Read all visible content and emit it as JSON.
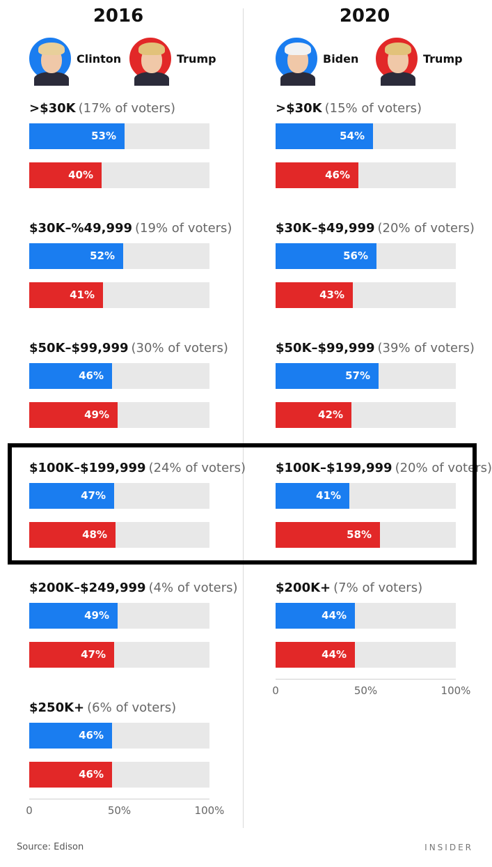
{
  "colors": {
    "dem": "#1a7df0",
    "rep": "#e22828",
    "track": "#e8e8e8"
  },
  "chart_data": [
    {
      "type": "bar",
      "title": "2016",
      "candidates": [
        {
          "name": "Clinton",
          "party": "dem",
          "icon": "clinton-photo-icon"
        },
        {
          "name": "Trump",
          "party": "rep",
          "icon": "trump-photo-icon"
        }
      ],
      "groups": [
        {
          "range": ">$30K",
          "share": "(17% of voters)",
          "dem": 53,
          "rep": 40
        },
        {
          "range": "$30K–%49,999",
          "share": "(19% of voters)",
          "dem": 52,
          "rep": 41
        },
        {
          "range": "$50K–$99,999",
          "share": "(30% of voters)",
          "dem": 46,
          "rep": 49
        },
        {
          "range": "$100K–$199,999",
          "share": "(24% of voters)",
          "dem": 47,
          "rep": 48
        },
        {
          "range": "$200K–$249,999",
          "share": "(4% of voters)",
          "dem": 49,
          "rep": 47
        },
        {
          "range": "$250K+",
          "share": "(6% of voters)",
          "dem": 46,
          "rep": 46
        }
      ],
      "xlim": [
        0,
        100
      ],
      "ticks": [
        "0",
        "50%",
        "100%"
      ]
    },
    {
      "type": "bar",
      "title": "2020",
      "candidates": [
        {
          "name": "Biden",
          "party": "dem",
          "icon": "biden-photo-icon"
        },
        {
          "name": "Trump",
          "party": "rep",
          "icon": "trump-photo-icon"
        }
      ],
      "groups": [
        {
          "range": ">$30K",
          "share": "(15% of voters)",
          "dem": 54,
          "rep": 46
        },
        {
          "range": "$30K–$49,999",
          "share": "(20% of voters)",
          "dem": 56,
          "rep": 43
        },
        {
          "range": "$50K–$99,999",
          "share": "(39% of voters)",
          "dem": 57,
          "rep": 42
        },
        {
          "range": "$100K–$199,999",
          "share": "(20% of voters)",
          "dem": 41,
          "rep": 58
        },
        {
          "range": "$200K+",
          "share": "(7% of voters)",
          "dem": 44,
          "rep": 44
        }
      ],
      "xlim": [
        0,
        100
      ],
      "ticks": [
        "0",
        "50%",
        "100%"
      ]
    }
  ],
  "highlighted_group": "$100K–$199,999",
  "footer": {
    "source_label": "Source:",
    "source": "Edison",
    "brand": "INSIDER"
  }
}
